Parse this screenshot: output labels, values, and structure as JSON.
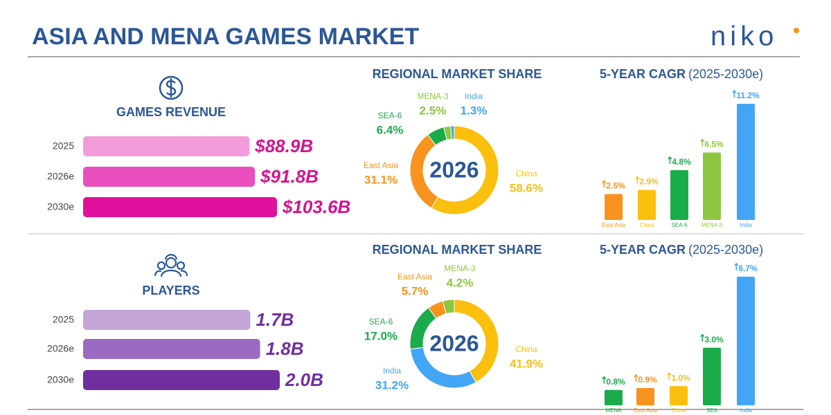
{
  "header": {
    "title": "ASIA AND MENA GAMES MARKET",
    "logo": "niko"
  },
  "chart_data": [
    {
      "type": "hbar",
      "title": "GAMES REVENUE",
      "categories": [
        "2025",
        "2026e",
        "2030e"
      ],
      "values": [
        88.9,
        91.8,
        103.6
      ],
      "value_labels": [
        "$88.9B",
        "$91.8B",
        "$103.6B"
      ],
      "colors": [
        "#f39bd9",
        "#e94fbf",
        "#e0119a"
      ],
      "label_color": "#d4148f"
    },
    {
      "type": "donut",
      "title": "REGIONAL MARKET SHARE",
      "center_label": "2026",
      "categories": [
        "China",
        "East Asia",
        "SEA-6",
        "MENA-3",
        "India"
      ],
      "values": [
        58.6,
        31.1,
        6.4,
        2.5,
        1.3
      ],
      "value_labels": [
        "58.6%",
        "31.1%",
        "6.4%",
        "2.5%",
        "1.3%"
      ],
      "colors": [
        "#fbbf0e",
        "#f7931e",
        "#1aac4b",
        "#8dc63f",
        "#42a5f5"
      ]
    },
    {
      "type": "bar",
      "title": "5-YEAR CAGR",
      "subtitle": "(2025-2030e)",
      "categories": [
        "East Asia",
        "China",
        "SEA-6",
        "MENA-3",
        "India"
      ],
      "values": [
        2.5,
        2.9,
        4.8,
        6.5,
        11.2
      ],
      "value_labels": [
        "2.5%",
        "2.9%",
        "4.8%",
        "6.5%",
        "11.2%"
      ],
      "colors": [
        "#f7931e",
        "#fbbf0e",
        "#1aac4b",
        "#8dc63f",
        "#42a5f5"
      ]
    },
    {
      "type": "hbar",
      "title": "PLAYERS",
      "categories": [
        "2025",
        "2026e",
        "2030e"
      ],
      "values": [
        1.7,
        1.8,
        2.0
      ],
      "value_labels": [
        "1.7B",
        "1.8B",
        "2.0B"
      ],
      "colors": [
        "#c3a5d6",
        "#9a6bc0",
        "#6f2f9e"
      ],
      "label_color": "#6f2f9e"
    },
    {
      "type": "donut",
      "title": "REGIONAL MARKET SHARE",
      "center_label": "2026",
      "categories": [
        "China",
        "India",
        "SEA-6",
        "East Asia",
        "MENA-3"
      ],
      "values": [
        41.9,
        31.2,
        17.0,
        5.7,
        4.2
      ],
      "value_labels": [
        "41.9%",
        "31.2%",
        "17.0%",
        "5.7%",
        "4.2%"
      ],
      "colors": [
        "#fbbf0e",
        "#42a5f5",
        "#1aac4b",
        "#f7931e",
        "#8dc63f"
      ]
    },
    {
      "type": "bar",
      "title": "5-YEAR CAGR",
      "subtitle": "(2025-2030e)",
      "categories": [
        "MENA",
        "East Asia",
        "China",
        "SEA",
        "India"
      ],
      "values": [
        0.8,
        0.9,
        1.0,
        3.0,
        6.7
      ],
      "value_labels": [
        "0.8%",
        "0.9%",
        "1.0%",
        "3.0%",
        "6.7%"
      ],
      "colors": [
        "#1aac4b",
        "#f7931e",
        "#fbbf0e",
        "#1aac4b",
        "#42a5f5"
      ]
    }
  ]
}
